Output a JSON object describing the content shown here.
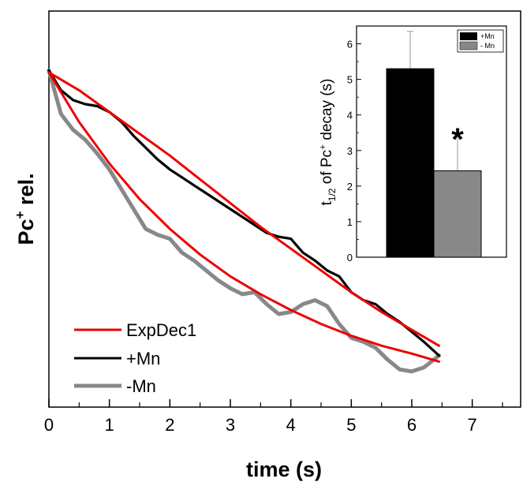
{
  "chart_data": [
    {
      "type": "line",
      "xlabel": "time (s)",
      "ylabel_main": "Pc",
      "ylabel_sup": "+",
      "ylabel_rest": " rel.",
      "xlim": [
        0,
        7.8
      ],
      "ylim": [
        0,
        1
      ],
      "x_ticks": [
        "0",
        "1",
        "2",
        "3",
        "4",
        "5",
        "6",
        "7"
      ],
      "y_ticks_shown": false,
      "legend_position": "bottom-left",
      "colors": {
        "fit": "#ee0000",
        "plus_mn": "#000000",
        "minus_mn": "#888888"
      },
      "series": [
        {
          "name": "+Mn",
          "x": [
            0,
            0.2,
            0.4,
            0.6,
            0.8,
            1.0,
            1.2,
            1.4,
            1.6,
            1.8,
            2.0,
            2.2,
            2.4,
            2.6,
            2.8,
            3.0,
            3.2,
            3.4,
            3.6,
            3.8,
            4.0,
            4.2,
            4.4,
            4.6,
            4.8,
            5.0,
            5.2,
            5.4,
            5.6,
            5.8,
            6.0,
            6.2,
            6.45
          ],
          "y": [
            0.85,
            0.8,
            0.775,
            0.765,
            0.76,
            0.745,
            0.72,
            0.685,
            0.655,
            0.625,
            0.6,
            0.58,
            0.56,
            0.54,
            0.52,
            0.5,
            0.48,
            0.46,
            0.44,
            0.43,
            0.425,
            0.39,
            0.37,
            0.345,
            0.33,
            0.29,
            0.27,
            0.26,
            0.235,
            0.215,
            0.19,
            0.165,
            0.13
          ]
        },
        {
          "name": "-Mn",
          "x": [
            0,
            0.2,
            0.4,
            0.6,
            0.8,
            1.0,
            1.2,
            1.4,
            1.6,
            1.8,
            2.0,
            2.2,
            2.4,
            2.6,
            2.8,
            3.0,
            3.2,
            3.4,
            3.6,
            3.8,
            4.0,
            4.2,
            4.4,
            4.6,
            4.8,
            5.0,
            5.2,
            5.4,
            5.6,
            5.8,
            6.0,
            6.2,
            6.45
          ],
          "y": [
            0.85,
            0.74,
            0.7,
            0.675,
            0.64,
            0.6,
            0.55,
            0.5,
            0.45,
            0.435,
            0.425,
            0.39,
            0.37,
            0.345,
            0.32,
            0.3,
            0.285,
            0.29,
            0.26,
            0.235,
            0.24,
            0.26,
            0.27,
            0.255,
            0.21,
            0.175,
            0.165,
            0.15,
            0.12,
            0.095,
            0.09,
            0.1,
            0.13
          ]
        },
        {
          "name": "ExpDec1",
          "fit_of": "+Mn",
          "x": [
            0,
            0.5,
            1.0,
            1.5,
            2.0,
            2.5,
            3.0,
            3.5,
            4.0,
            4.5,
            5.0,
            5.5,
            6.0,
            6.45
          ],
          "y": [
            0.845,
            0.8,
            0.745,
            0.69,
            0.635,
            0.575,
            0.515,
            0.455,
            0.4,
            0.345,
            0.29,
            0.24,
            0.195,
            0.155
          ]
        },
        {
          "name": "ExpDec1",
          "fit_of": "-Mn",
          "x": [
            0,
            0.5,
            1.0,
            1.5,
            2.0,
            2.5,
            3.0,
            3.5,
            4.0,
            4.5,
            5.0,
            5.5,
            6.0,
            6.45
          ],
          "y": [
            0.845,
            0.72,
            0.615,
            0.525,
            0.45,
            0.385,
            0.33,
            0.285,
            0.245,
            0.21,
            0.18,
            0.155,
            0.135,
            0.115
          ]
        }
      ],
      "legend": [
        {
          "label": "ExpDec1",
          "color": "#ee0000"
        },
        {
          "label": "+Mn",
          "color": "#000000"
        },
        {
          "label": "-Mn",
          "color": "#888888"
        }
      ]
    },
    {
      "type": "bar",
      "categories": [
        "+Mn",
        "- Mn"
      ],
      "values": [
        5.3,
        2.43
      ],
      "errors": [
        1.05,
        0.95
      ],
      "colors": [
        "#000000",
        "#888888"
      ],
      "ylabel_parts": [
        "t",
        "1/2",
        " of Pc",
        "+",
        " decay (s)"
      ],
      "ylim": [
        0,
        6.5
      ],
      "y_ticks": [
        "0",
        "1",
        "2",
        "3",
        "4",
        "5",
        "6"
      ],
      "significance_marker": "*",
      "legend_position": "top-right"
    }
  ]
}
